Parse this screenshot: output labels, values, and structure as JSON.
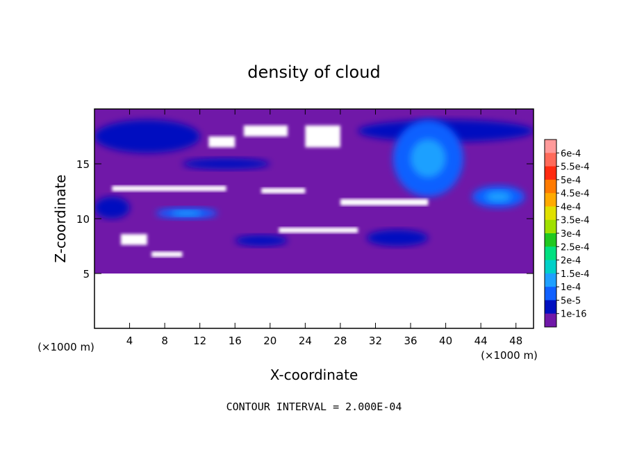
{
  "chart_data": {
    "type": "heatmap",
    "title": "density of cloud",
    "xlabel": "X-coordinate",
    "ylabel": "Z-coordinate",
    "x_unit": "(×1000 m)",
    "x_unit_right": "(×1000 m)",
    "xlim": [
      0,
      50
    ],
    "ylim": [
      0,
      20
    ],
    "x_ticks": [
      4,
      8,
      12,
      16,
      20,
      24,
      28,
      32,
      36,
      40,
      44,
      48
    ],
    "y_ticks": [
      5,
      10,
      15
    ],
    "contour_interval_label": "CONTOUR INTERVAL = 2.000E-04",
    "colorbar": {
      "labels": [
        "6e-4",
        "5.5e-4",
        "5e-4",
        "4.5e-4",
        "4e-4",
        "3.5e-4",
        "3e-4",
        "2.5e-4",
        "2e-4",
        "1.5e-4",
        "1e-4",
        "5e-5",
        "1e-16"
      ],
      "colors": [
        "#ff9a9a",
        "#ff6a5a",
        "#ff2a10",
        "#ff7a00",
        "#ffaa00",
        "#e0e000",
        "#a0e000",
        "#20c820",
        "#00e080",
        "#00d0c8",
        "#1fa0ff",
        "#1060ff",
        "#0010c0",
        "#7018a8"
      ]
    },
    "field": {
      "background_level": "1e-16",
      "domain_z_min": 5,
      "no_data_regions": [
        {
          "x": [
            0,
            50
          ],
          "z": [
            0,
            5
          ]
        },
        {
          "x": [
            13,
            16
          ],
          "z": [
            16.5,
            17.5
          ]
        },
        {
          "x": [
            17,
            22
          ],
          "z": [
            17.5,
            18.5
          ]
        },
        {
          "x": [
            24,
            28
          ],
          "z": [
            16.5,
            18.5
          ]
        },
        {
          "x": [
            2,
            15
          ],
          "z": [
            12.5,
            13
          ]
        },
        {
          "x": [
            19,
            24
          ],
          "z": [
            12.3,
            12.8
          ]
        },
        {
          "x": [
            28,
            38
          ],
          "z": [
            11.2,
            11.8
          ]
        },
        {
          "x": [
            21,
            30
          ],
          "z": [
            8.7,
            9.2
          ]
        },
        {
          "x": [
            3,
            6
          ],
          "z": [
            7.6,
            8.6
          ]
        },
        {
          "x": [
            6.5,
            10
          ],
          "z": [
            6.5,
            7
          ]
        }
      ],
      "regions_level_1e-4": [
        {
          "x": [
            34,
            42
          ],
          "z": [
            12,
            19
          ]
        },
        {
          "x": [
            43,
            49
          ],
          "z": [
            11,
            13
          ]
        },
        {
          "x": [
            7,
            14
          ],
          "z": [
            10,
            11
          ]
        }
      ],
      "regions_level_5e-5": [
        {
          "x": [
            0,
            12
          ],
          "z": [
            16,
            19
          ]
        },
        {
          "x": [
            10,
            20
          ],
          "z": [
            14.5,
            15.5
          ]
        },
        {
          "x": [
            0,
            4
          ],
          "z": [
            10,
            12
          ]
        },
        {
          "x": [
            16,
            22
          ],
          "z": [
            7.5,
            8.5
          ]
        },
        {
          "x": [
            31,
            38
          ],
          "z": [
            7.5,
            9
          ]
        },
        {
          "x": [
            30,
            50
          ],
          "z": [
            17,
            19
          ]
        }
      ]
    }
  }
}
